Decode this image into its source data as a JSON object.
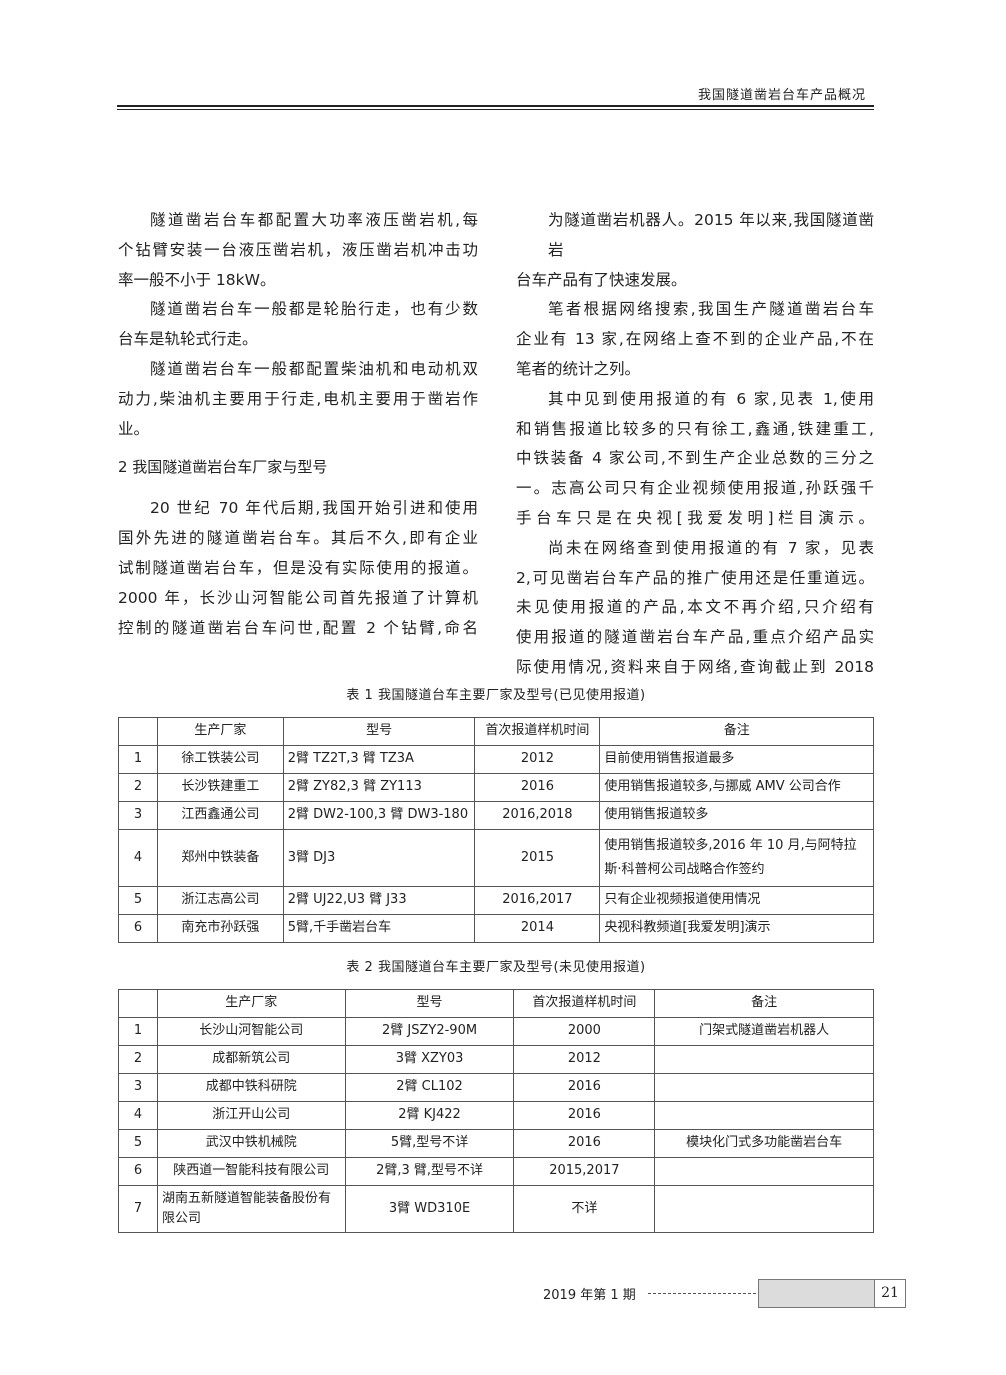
{
  "header": {
    "running_title": "我国隧道凿岩台车产品概况"
  },
  "left_column": {
    "paragraphs_before": [
      [
        "隧道凿岩台车都配置大功率液压凿岩机,每",
        "个钻臂安装一台液压凿岩机，液压凿岩机冲击功",
        "率一般不小于 18kW。"
      ],
      [
        "隧道凿岩台车一般都是轮胎行走，也有少数",
        "台车是轨轮式行走。"
      ],
      [
        "隧道凿岩台车一般都配置柴油机和电动机双",
        "动力,柴油机主要用于行走,电机主要用于凿岩作",
        "业。"
      ]
    ],
    "section_heading": "2  我国隧道凿岩台车厂家与型号",
    "paragraphs_after": [
      [
        "20 世纪 70 年代后期,我国开始引进和使用",
        "国外先进的隧道凿岩台车。其后不久,即有企业",
        "试制隧道凿岩台车，但是没有实际使用的报道。",
        "2000 年，长沙山河智能公司首先报道了计算机",
        "控制的隧道凿岩台车问世,配置 2 个钻臂,命名"
      ]
    ]
  },
  "right_column": {
    "paragraphs": [
      [
        "为隧道凿岩机器人。2015 年以来,我国隧道凿岩",
        "台车产品有了快速发展。"
      ],
      [
        "笔者根据网络搜索,我国生产隧道凿岩台车",
        "企业有 13 家,在网络上查不到的企业产品,不在",
        "笔者的统计之列。"
      ],
      [
        "其中见到使用报道的有 6 家,见表 1,使用",
        "和销售报道比较多的只有徐工,鑫通,铁建重工,",
        "中铁装备 4 家公司,不到生产企业总数的三分之",
        "一。志高公司只有企业视频使用报道,孙跃强千",
        "手台车只是在央视[我爱发明]栏目演示。"
      ],
      [
        "尚未在网络查到使用报道的有 7 家，见表",
        "2,可见凿岩台车产品的推广使用还是任重道远。",
        "未见使用报道的产品,本文不再介绍,只介绍有",
        "使用报道的隧道凿岩台车产品,重点介绍产品实",
        "际使用情况,资料来自于网络,查询截止到 2018"
      ]
    ]
  },
  "table1": {
    "caption": "表 1   我国隧道台车主要厂家及型号(已见使用报道)",
    "headers": [
      "",
      "生产厂家",
      "型号",
      "首次报道样机时间",
      "备注"
    ],
    "rows": [
      [
        "1",
        "徐工铁装公司",
        "2臂 TZ2T,3 臂 TZ3A",
        "2012",
        "目前使用销售报道最多"
      ],
      [
        "2",
        "长沙铁建重工",
        "2臂 ZY82,3 臂 ZY113",
        "2016",
        "使用销售报道较多,与挪威 AMV 公司合作"
      ],
      [
        "3",
        "江西鑫通公司",
        "2臂 DW2-100,3 臂 DW3-180",
        "2016,2018",
        "使用销售报道较多"
      ],
      [
        "4",
        "郑州中铁装备",
        "3臂 DJ3",
        "2015",
        "使用销售报道较多,2016 年 10 月,与阿特拉斯·科普柯公司战略合作签约"
      ],
      [
        "5",
        "浙江志高公司",
        "2臂 UJ22,U3 臂 J33",
        "2016,2017",
        "只有企业视频报道使用情况"
      ],
      [
        "6",
        "南充市孙跃强",
        "5臂,千手凿岩台车",
        "2014",
        "央视科教频道[我爱发明]演示"
      ]
    ]
  },
  "table2": {
    "caption": "表 2   我国隧道台车主要厂家及型号(未见使用报道)",
    "headers": [
      "",
      "生产厂家",
      "型号",
      "首次报道样机时间",
      "备注"
    ],
    "rows": [
      [
        "1",
        "长沙山河智能公司",
        "2臂 JSZY2-90M",
        "2000",
        "门架式隧道凿岩机器人"
      ],
      [
        "2",
        "成都新筑公司",
        "3臂 XZY03",
        "2012",
        ""
      ],
      [
        "3",
        "成都中铁科研院",
        "2臂 CL102",
        "2016",
        ""
      ],
      [
        "4",
        "浙江开山公司",
        "2臂 KJ422",
        "2016",
        ""
      ],
      [
        "5",
        "武汉中铁机械院",
        "5臂,型号不详",
        "2016",
        "模块化门式多功能凿岩台车"
      ],
      [
        "6",
        "陕西道一智能科技有限公司",
        "2臂,3 臂,型号不详",
        "2015,2017",
        ""
      ],
      [
        "7",
        "湖南五新隧道智能装备股份有限公司",
        "3臂 WD310E",
        "不详",
        ""
      ]
    ]
  },
  "footer": {
    "issue": "2019 年第 1 期",
    "page_number": "21"
  }
}
